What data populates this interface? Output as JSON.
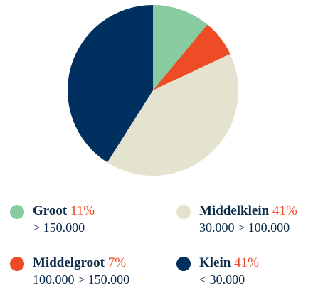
{
  "chart_data": {
    "type": "pie",
    "categories": [
      "Groot",
      "Middelgroot",
      "Middelklein",
      "Klein"
    ],
    "values": [
      11,
      7,
      41,
      41
    ],
    "value_labels": [
      "11%",
      "7%",
      "41%",
      "41%"
    ],
    "ranges": [
      "> 150.000",
      "100.000 > 150.000",
      "30.000 > 100.000",
      "< 30.000"
    ],
    "colors": [
      "#88cba0",
      "#ee4b27",
      "#e3e3cf",
      "#00305f"
    ]
  }
}
